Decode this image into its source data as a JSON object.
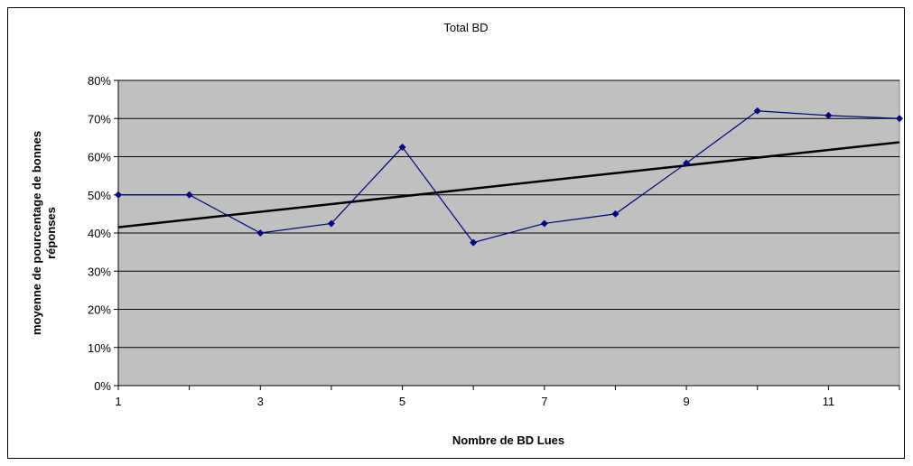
{
  "chart_data": {
    "type": "line",
    "title": "Total BD",
    "xlabel": "Nombre de BD Lues",
    "ylabel_lines": [
      "moyenne de pourcentage de bonnes",
      "réponses"
    ],
    "x": [
      1,
      2,
      3,
      4,
      5,
      6,
      7,
      8,
      9,
      10,
      11,
      12
    ],
    "x_tick_labels": [
      "1",
      "3",
      "5",
      "7",
      "9",
      "11"
    ],
    "x_tick_values": [
      1,
      3,
      5,
      7,
      9,
      11
    ],
    "xlim": [
      1,
      12
    ],
    "y_tick_labels": [
      "0%",
      "10%",
      "20%",
      "30%",
      "40%",
      "50%",
      "60%",
      "70%",
      "80%"
    ],
    "y_tick_values": [
      0,
      10,
      20,
      30,
      40,
      50,
      60,
      70,
      80
    ],
    "ylim": [
      0,
      80
    ],
    "grid": true,
    "legend": "none",
    "series": [
      {
        "values": [
          50,
          50,
          40,
          42.5,
          62.5,
          37.5,
          42.5,
          45,
          58.3,
          72,
          70.8,
          70
        ],
        "color": "#000080",
        "marker": "diamond"
      }
    ],
    "trendline": {
      "type": "linear",
      "start": [
        1,
        41.5
      ],
      "end": [
        12,
        63.8
      ],
      "color": "#000000"
    },
    "plot_background": "#c0c0c0",
    "gridline_color": "#000000"
  }
}
